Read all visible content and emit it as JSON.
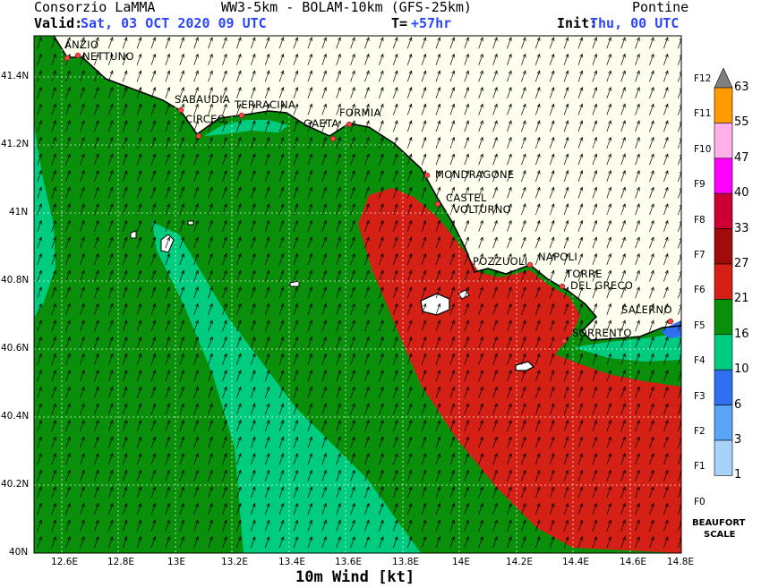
{
  "header": {
    "left_title": "Consorzio LaMMA",
    "center_title": "WW3-5km - BOLAM-10km (GFS-25km)",
    "right_title": "Pontine",
    "valid_label": "Valid:",
    "valid_value": "Sat, 03 OCT 2020  09 UTC",
    "t_label": "T=",
    "t_value": "+57hr",
    "init_label": "Init:",
    "init_value": "Thu, 00 UTC"
  },
  "map": {
    "x_label": "10m Wind [kt]",
    "lon_ticks": [
      "12.6E",
      "12.8E",
      "13E",
      "13.2E",
      "13.4E",
      "13.6E",
      "13.8E",
      "14E",
      "14.2E",
      "14.4E",
      "14.6E",
      "14.8E"
    ],
    "lat_ticks": [
      "41.4N",
      "41.2N",
      "41N",
      "40.8N",
      "40.6N",
      "40.4N",
      "40.2N",
      "40N"
    ],
    "cities": [
      {
        "name": "ANZIO"
      },
      {
        "name": "NETTUNO"
      },
      {
        "name": "SABAUDIA"
      },
      {
        "name": "CIRCEO"
      },
      {
        "name": "TERRACINA"
      },
      {
        "name": "GAETA"
      },
      {
        "name": "FORMIA"
      },
      {
        "name": "MONDRAGONE"
      },
      {
        "name": "CASTEL"
      },
      {
        "name": "VOLTURNO"
      },
      {
        "name": "POZZUOLI"
      },
      {
        "name": "NAPOLI"
      },
      {
        "name": "TORRE"
      },
      {
        "name": "DEL GRECO"
      },
      {
        "name": "SORRENTO"
      },
      {
        "name": "SALERNO"
      }
    ],
    "colors": {
      "land": "#fffff0",
      "wind_10_16": "#00cc80",
      "wind_16_21": "#0a8f0a",
      "wind_21_27": "#d42015",
      "wind_27_33": "#a00c0c",
      "city_dot": "#ff4040"
    },
    "wind_direction_deg": 20
  },
  "colorbar": {
    "knots": [
      "63",
      "55",
      "47",
      "40",
      "33",
      "27",
      "21",
      "16",
      "10",
      "6",
      "3",
      "1"
    ],
    "beaufort": [
      "F12",
      "F11",
      "F10",
      "F9",
      "F8",
      "F7",
      "F6",
      "F5",
      "F4",
      "F3",
      "F2",
      "F1",
      "F0"
    ],
    "colors": [
      "#ff9a00",
      "#ffb0e8",
      "#ff00ff",
      "#cc0033",
      "#a00c0c",
      "#d42015",
      "#0a8f0a",
      "#00cc80",
      "#2f6ff0",
      "#5aa5f5",
      "#a9d2fa"
    ],
    "top_color": "#808080",
    "scale_label_1": "BEAUFORT",
    "scale_label_2": "SCALE"
  }
}
